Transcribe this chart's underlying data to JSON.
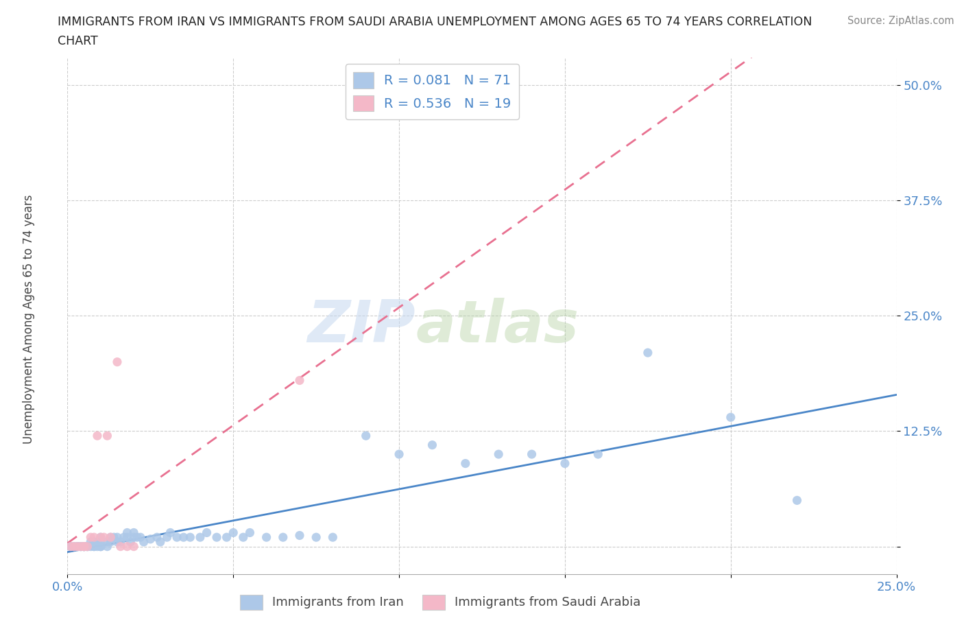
{
  "title_line1": "IMMIGRANTS FROM IRAN VS IMMIGRANTS FROM SAUDI ARABIA UNEMPLOYMENT AMONG AGES 65 TO 74 YEARS CORRELATION",
  "title_line2": "CHART",
  "source_text": "Source: ZipAtlas.com",
  "ylabel": "Unemployment Among Ages 65 to 74 years",
  "xlim": [
    0.0,
    0.25
  ],
  "ylim": [
    -0.03,
    0.53
  ],
  "xticks": [
    0.0,
    0.05,
    0.1,
    0.15,
    0.2,
    0.25
  ],
  "xticklabels": [
    "0.0%",
    "",
    "",
    "",
    "",
    "25.0%"
  ],
  "yticks": [
    0.0,
    0.125,
    0.25,
    0.375,
    0.5
  ],
  "yticklabels": [
    "",
    "12.5%",
    "25.0%",
    "37.5%",
    "50.0%"
  ],
  "iran_R": 0.081,
  "iran_N": 71,
  "saudi_R": 0.536,
  "saudi_N": 19,
  "iran_color": "#adc8e8",
  "saudi_color": "#f4b8c8",
  "iran_line_color": "#4a86c8",
  "saudi_line_color": "#e87090",
  "legend_label_iran": "Immigrants from Iran",
  "legend_label_saudi": "Immigrants from Saudi Arabia",
  "watermark_zip": "ZIP",
  "watermark_atlas": "atlas",
  "background_color": "#ffffff",
  "grid_color": "#cccccc",
  "iran_x": [
    0.001,
    0.002,
    0.003,
    0.003,
    0.004,
    0.004,
    0.005,
    0.005,
    0.005,
    0.006,
    0.006,
    0.007,
    0.007,
    0.008,
    0.008,
    0.008,
    0.009,
    0.009,
    0.01,
    0.01,
    0.01,
    0.01,
    0.01,
    0.012,
    0.012,
    0.013,
    0.013,
    0.014,
    0.015,
    0.015,
    0.016,
    0.017,
    0.018,
    0.018,
    0.019,
    0.02,
    0.02,
    0.021,
    0.022,
    0.023,
    0.025,
    0.027,
    0.028,
    0.03,
    0.031,
    0.033,
    0.035,
    0.037,
    0.04,
    0.042,
    0.045,
    0.048,
    0.05,
    0.053,
    0.055,
    0.06,
    0.065,
    0.07,
    0.075,
    0.08,
    0.09,
    0.1,
    0.11,
    0.12,
    0.13,
    0.14,
    0.15,
    0.16,
    0.175,
    0.2,
    0.22
  ],
  "iran_y": [
    0.0,
    0.0,
    0.0,
    0.0,
    0.0,
    0.0,
    0.0,
    0.0,
    0.0,
    0.0,
    0.0,
    0.0,
    0.005,
    0.0,
    0.0,
    0.005,
    0.0,
    0.005,
    0.0,
    0.0,
    0.0,
    0.005,
    0.01,
    0.0,
    0.005,
    0.005,
    0.01,
    0.01,
    0.005,
    0.01,
    0.005,
    0.01,
    0.01,
    0.015,
    0.005,
    0.01,
    0.015,
    0.01,
    0.01,
    0.005,
    0.008,
    0.01,
    0.005,
    0.01,
    0.015,
    0.01,
    0.01,
    0.01,
    0.01,
    0.015,
    0.01,
    0.01,
    0.015,
    0.01,
    0.015,
    0.01,
    0.01,
    0.012,
    0.01,
    0.01,
    0.12,
    0.1,
    0.11,
    0.09,
    0.1,
    0.1,
    0.09,
    0.1,
    0.21,
    0.14,
    0.05
  ],
  "saudi_x": [
    0.001,
    0.002,
    0.003,
    0.004,
    0.005,
    0.005,
    0.006,
    0.007,
    0.008,
    0.009,
    0.01,
    0.011,
    0.012,
    0.013,
    0.015,
    0.016,
    0.018,
    0.02,
    0.07
  ],
  "saudi_y": [
    0.0,
    0.0,
    0.0,
    0.0,
    0.0,
    0.0,
    0.0,
    0.01,
    0.01,
    0.12,
    0.01,
    0.01,
    0.12,
    0.01,
    0.2,
    0.0,
    0.0,
    0.0,
    0.18
  ]
}
